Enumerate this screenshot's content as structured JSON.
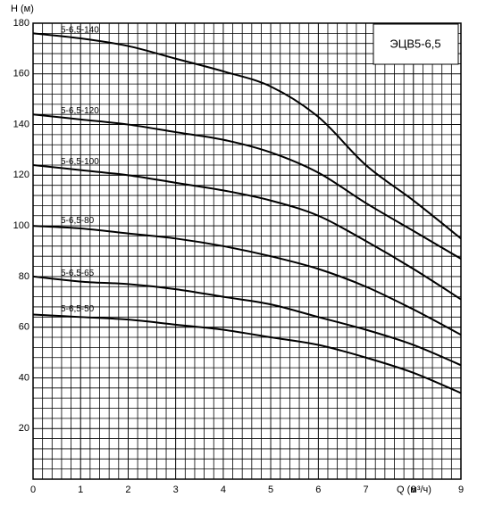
{
  "chart_data": {
    "type": "line",
    "title": "ЭЦВ5-6,5",
    "ylabel": "H (м)",
    "xlabel": "Q (м³/ч)",
    "x": [
      0,
      1,
      2,
      3,
      4,
      5,
      6,
      7,
      8,
      9
    ],
    "series": [
      {
        "name": "5-6,5-140",
        "color": "#000000",
        "values": [
          176,
          174,
          171,
          166,
          161,
          155,
          143,
          124,
          110,
          95
        ]
      },
      {
        "name": "5-6,5-120",
        "color": "#000000",
        "values": [
          144,
          142,
          140,
          137,
          134,
          129,
          121,
          109,
          98,
          87
        ]
      },
      {
        "name": "5-6,5-100",
        "color": "#000000",
        "values": [
          124,
          122,
          120,
          117,
          114,
          110,
          104,
          94,
          83,
          71
        ]
      },
      {
        "name": "5-6,5-80",
        "color": "#000000",
        "values": [
          100,
          99,
          97,
          95,
          92,
          88,
          83,
          76,
          67,
          57
        ]
      },
      {
        "name": "5-6,5-65",
        "color": "#000000",
        "values": [
          80,
          78,
          77,
          75,
          72,
          69,
          64,
          59,
          53,
          45
        ]
      },
      {
        "name": "5-6,5-50",
        "color": "#000000",
        "values": [
          65,
          64,
          63,
          61,
          59,
          56,
          53,
          48,
          42,
          34
        ]
      }
    ],
    "xlim": [
      0,
      9
    ],
    "xticks": [
      0,
      1,
      2,
      3,
      4,
      5,
      6,
      7,
      8,
      9
    ],
    "ylim": [
      0,
      180
    ],
    "yticks": [
      20,
      40,
      60,
      80,
      100,
      120,
      140,
      160,
      180
    ],
    "grid": true
  }
}
